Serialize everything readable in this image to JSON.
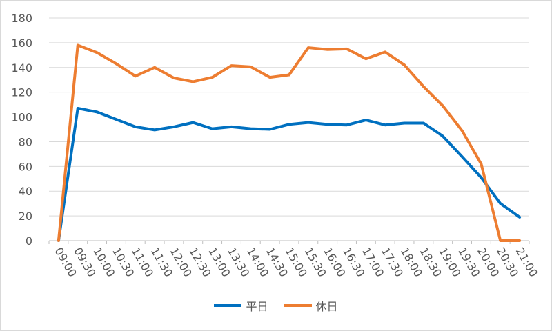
{
  "chart_data": {
    "type": "line",
    "x": [
      "09:00",
      "09:30",
      "10:00",
      "10:30",
      "11:00",
      "11:30",
      "12:00",
      "12:30",
      "13:00",
      "13:30",
      "14:00",
      "14:30",
      "15:00",
      "15:30",
      "16:00",
      "16:30",
      "17:00",
      "17:30",
      "18:00",
      "18:30",
      "19:00",
      "19:30",
      "20:00",
      "20:30",
      "21:00"
    ],
    "series": [
      {
        "name": "平日",
        "color": "#0070C0",
        "values": [
          0,
          107,
          104,
          98,
          92,
          89.5,
          92,
          95.5,
          90.5,
          92,
          90.5,
          90,
          94,
          95.5,
          94,
          93.5,
          97.5,
          93.5,
          95,
          95,
          84.5,
          68,
          51,
          30,
          19
        ]
      },
      {
        "name": "休日",
        "color": "#ED7D31",
        "values": [
          0,
          158,
          152,
          143,
          133,
          140,
          131.5,
          128.5,
          132,
          141.5,
          140.5,
          132,
          134,
          156,
          154.5,
          155,
          147,
          152.5,
          142,
          124.5,
          109,
          89,
          62,
          0,
          0
        ]
      }
    ],
    "ylim": [
      0,
      180
    ],
    "yticks": [
      "0",
      "20",
      "40",
      "60",
      "80",
      "100",
      "120",
      "140",
      "160",
      "180"
    ],
    "grid": true,
    "legend_position": "bottom"
  }
}
